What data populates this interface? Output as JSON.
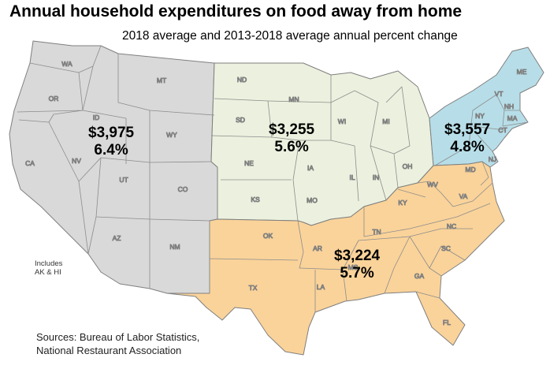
{
  "title": "Annual household expenditures on food away from home",
  "subtitle": "2018 average and 2013-2018 average annual percent change",
  "colors": {
    "west": "#d9d9d9",
    "midwest": "#ebf1de",
    "northeast": "#b7dee8",
    "south": "#fad39a",
    "border": "#7f7f7f"
  },
  "regions": [
    {
      "id": "west",
      "amount": "$3,975",
      "change": "6.4%"
    },
    {
      "id": "midwest",
      "amount": "$3,255",
      "change": "5.6%"
    },
    {
      "id": "northeast",
      "amount": "$3,557",
      "change": "4.8%"
    },
    {
      "id": "south",
      "amount": "$3,224",
      "change": "5.7%"
    }
  ],
  "states": [
    "WA",
    "OR",
    "ID",
    "MT",
    "WY",
    "CA",
    "NV",
    "UT",
    "CO",
    "AZ",
    "NM",
    "ND",
    "SD",
    "MN",
    "WI",
    "MI",
    "NE",
    "IA",
    "IL",
    "IN",
    "OH",
    "KS",
    "MO",
    "ME",
    "VT",
    "NH",
    "MA",
    "NY",
    "CT",
    "NJ",
    "MD",
    "WV",
    "VA",
    "KY",
    "TN",
    "NC",
    "OK",
    "AR",
    "SC",
    "TX",
    "LA",
    "MS",
    "GA",
    "FL"
  ],
  "note": {
    "line1": "Includes",
    "line2": "AK & HI"
  },
  "sources": {
    "line1": "Sources: Bureau of Labor Statistics,",
    "line2": "National Restaurant Association"
  }
}
